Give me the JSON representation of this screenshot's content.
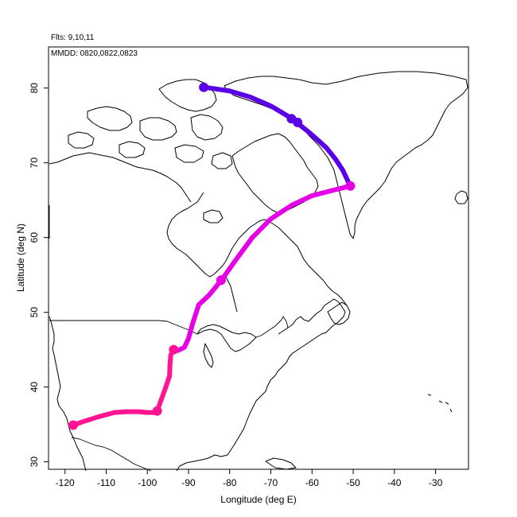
{
  "header": {
    "flights_label": "Flts: 9,10,11",
    "dates_label": "MMDD: 0820,0822,0823"
  },
  "chart_data": {
    "type": "line",
    "title": "",
    "xlabel": "Longitude (deg E)",
    "ylabel": "Latitude (deg N)",
    "xlim": [
      -124,
      -22
    ],
    "ylim": [
      29,
      85.5
    ],
    "xticks": [
      -120,
      -110,
      -100,
      -90,
      -80,
      -70,
      -60,
      -50,
      -40,
      -30
    ],
    "yticks": [
      30,
      40,
      50,
      60,
      70,
      80
    ],
    "xtick_labels": [
      "-120",
      "-110",
      "-100",
      "-90",
      "-80",
      "-70",
      "-60",
      "-50",
      "-40",
      "-30"
    ],
    "ytick_labels": [
      "30",
      "40",
      "50",
      "60",
      "70",
      "80"
    ],
    "grid": false,
    "legend": "none",
    "series": [
      {
        "color": "#ff1493",
        "points": [
          [
            -118.0,
            34.9
          ],
          [
            -116.0,
            35.3
          ],
          [
            -112.0,
            36.0
          ],
          [
            -108.0,
            36.6
          ],
          [
            -105.0,
            36.7
          ],
          [
            -102.0,
            36.7
          ],
          [
            -100.0,
            36.6
          ],
          [
            -98.0,
            36.6
          ],
          [
            -97.5,
            37.0
          ],
          [
            -96.5,
            38.5
          ],
          [
            -95.5,
            40.0
          ],
          [
            -94.6,
            41.5
          ],
          [
            -94.5,
            43.0
          ],
          [
            -94.3,
            44.3
          ],
          [
            -93.5,
            45.0
          ],
          [
            -92.6,
            44.9
          ]
        ]
      },
      {
        "color": "#e600e6",
        "points": [
          [
            -92.6,
            44.9
          ],
          [
            -91.0,
            45.3
          ],
          [
            -90.0,
            46.5
          ],
          [
            -89.0,
            48.5
          ],
          [
            -87.5,
            51.0
          ],
          [
            -85.0,
            52.3
          ],
          [
            -82.0,
            54.3
          ],
          [
            -78.5,
            57.0
          ],
          [
            -74.5,
            60.0
          ],
          [
            -70.0,
            62.5
          ],
          [
            -65.0,
            64.3
          ],
          [
            -60.0,
            65.6
          ],
          [
            -55.0,
            66.3
          ],
          [
            -50.7,
            66.9
          ]
        ]
      },
      {
        "color": "#5a00e6",
        "points": [
          [
            -50.7,
            66.9
          ],
          [
            -51.5,
            67.8
          ],
          [
            -52.5,
            69.0
          ],
          [
            -54.3,
            70.5
          ],
          [
            -56.5,
            72.0
          ],
          [
            -58.5,
            73.0
          ],
          [
            -61.0,
            74.2
          ],
          [
            -63.5,
            75.3
          ],
          [
            -66.0,
            76.3
          ],
          [
            -70.0,
            77.6
          ],
          [
            -75.0,
            78.8
          ],
          [
            -80.0,
            79.6
          ],
          [
            -86.0,
            80.1
          ]
        ]
      }
    ],
    "markers": [
      {
        "lon": -118.0,
        "lat": 34.9,
        "color": "#ff1493"
      },
      {
        "lon": -97.6,
        "lat": 36.8,
        "color": "#ff1493"
      },
      {
        "lon": -93.6,
        "lat": 45.0,
        "color": "#ff1493"
      },
      {
        "lon": -82.1,
        "lat": 54.3,
        "color": "#e600e6"
      },
      {
        "lon": -50.7,
        "lat": 66.9,
        "color": "#e600e6"
      },
      {
        "lon": -86.3,
        "lat": 80.1,
        "color": "#5a00e6"
      },
      {
        "lon": -65.0,
        "lat": 75.9,
        "color": "#5a00e6"
      },
      {
        "lon": -63.5,
        "lat": 75.4,
        "color": "#5a00e6"
      }
    ]
  }
}
